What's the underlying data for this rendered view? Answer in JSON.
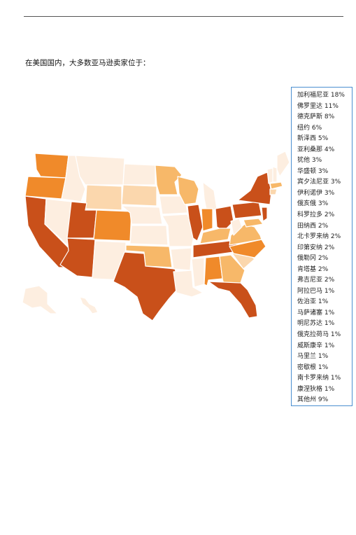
{
  "intro_text": "在美国国内，大多数亚马逊卖家位于：",
  "colors": {
    "highest": "#c9501a",
    "high": "#f08a2a",
    "medium": "#f7b869",
    "low": "#fbd7ad",
    "lowest": "#fdeee0"
  },
  "legend": [
    "加利福尼亚 18%",
    "佛罗里达  11%",
    "德克萨斯  8%",
    "纽约  6%",
    "新泽西  5%",
    "亚利桑那  4%",
    "犹他  3%",
    "华盛顿  3%",
    "宾夕法尼亚  3%",
    "伊利诺伊  3%",
    "俄亥俄  3%",
    "科罗拉多  2%",
    "田纳西  2%",
    "北卡罗来纳  2%",
    "印第安纳  2%",
    "俄勒冈  2%",
    "肯塔基  2%",
    "弗吉尼亚  2%",
    "阿拉巴马  1%",
    "佐治亚  1%",
    "马萨诸塞  1%",
    "明尼苏达  1%",
    "俄克拉荷马  1%",
    "威斯康辛 1%",
    "马里兰  1%",
    "密歇根  1%",
    "南卡罗来纳  1%",
    "康涅狄格  1%",
    "其他州  9%"
  ]
}
